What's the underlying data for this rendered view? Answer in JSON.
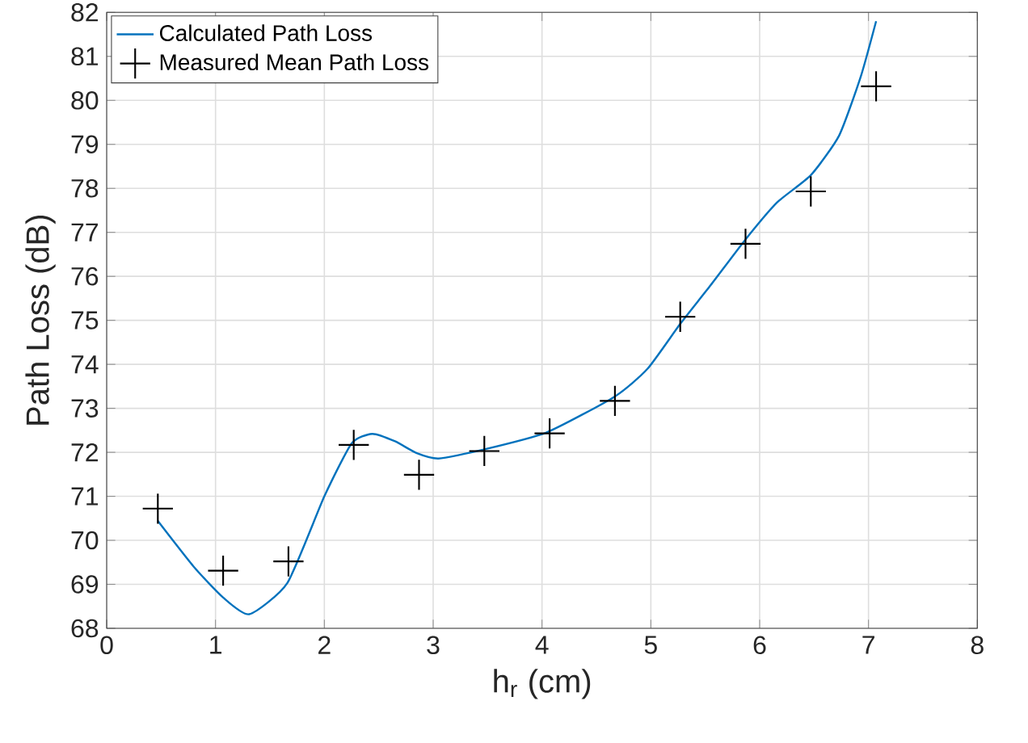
{
  "chart_data": {
    "type": "line",
    "xlabel": "h$_{r}$ (cm)",
    "ylabel": "Path Loss (dB)",
    "xlim": [
      0,
      8
    ],
    "ylim": [
      68,
      82
    ],
    "xticks": [
      0,
      1,
      2,
      3,
      4,
      5,
      6,
      7,
      8
    ],
    "yticks": [
      68,
      69,
      70,
      71,
      72,
      73,
      74,
      75,
      76,
      77,
      78,
      79,
      80,
      81,
      82
    ],
    "grid": true,
    "legend": "top left",
    "series": [
      {
        "name": "Calculated Path Loss",
        "color": "#0072bd",
        "marker": "none",
        "line_style": "solid",
        "x": [
          0.47,
          0.8,
          1.07,
          1.31,
          1.66,
          2.0,
          2.25,
          2.44,
          2.65,
          2.85,
          3.05,
          3.44,
          4.04,
          4.67,
          4.97,
          5.27,
          5.55,
          5.87,
          6.16,
          6.47,
          6.73,
          6.93,
          7.07
        ],
        "values": [
          70.44,
          69.4,
          68.7,
          68.32,
          69.03,
          71.0,
          72.2,
          72.42,
          72.25,
          71.98,
          71.86,
          72.05,
          72.45,
          73.27,
          73.9,
          74.92,
          75.8,
          76.84,
          77.68,
          78.3,
          79.2,
          80.55,
          81.8
        ]
      },
      {
        "name": "Measured Mean Path Loss",
        "type": "scatter",
        "color": "#000000",
        "marker": "cross",
        "x": [
          0.47,
          1.07,
          1.67,
          2.27,
          2.87,
          3.47,
          4.07,
          4.67,
          5.27,
          5.87,
          6.47,
          7.07
        ],
        "values": [
          70.72,
          69.31,
          69.52,
          72.17,
          71.49,
          72.03,
          72.43,
          73.17,
          75.08,
          76.74,
          77.93,
          80.32
        ]
      }
    ]
  }
}
